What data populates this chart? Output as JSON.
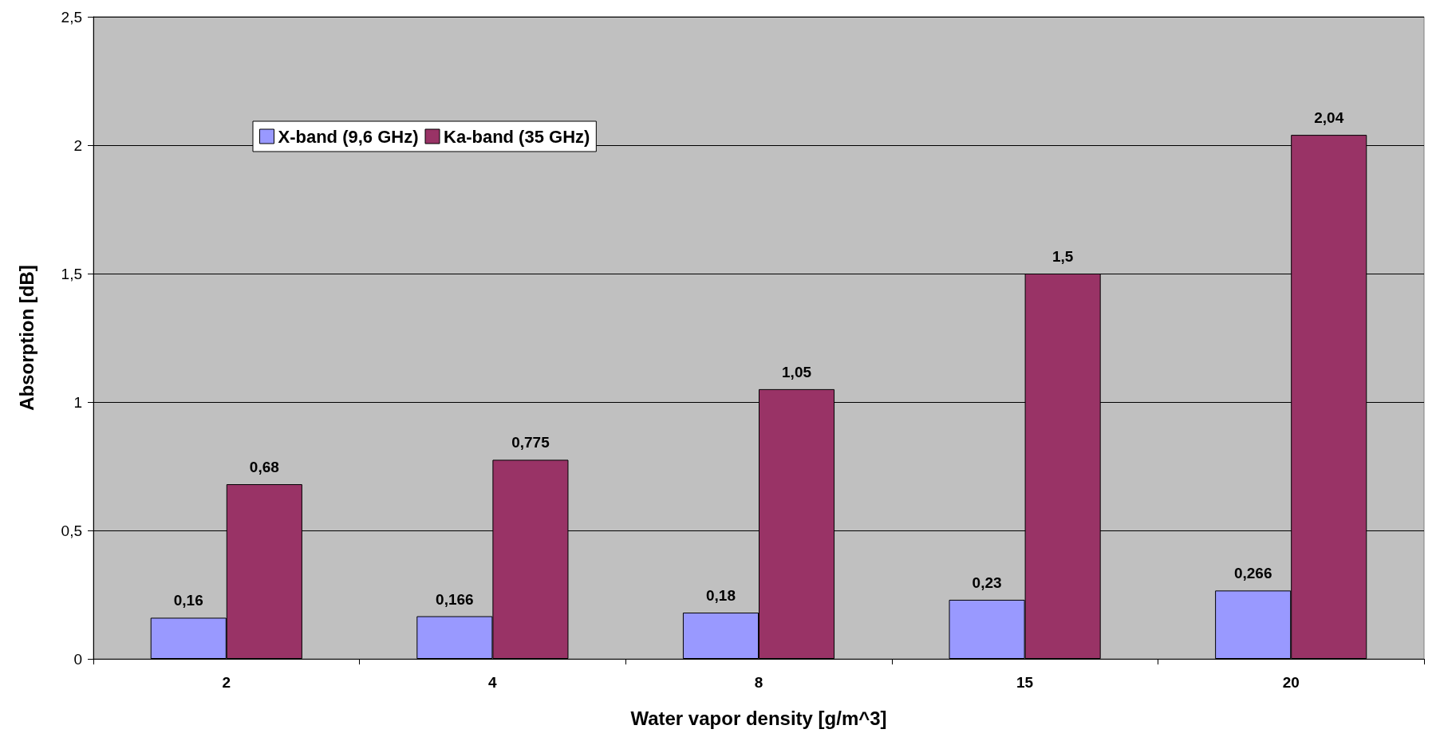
{
  "chart_data": {
    "type": "bar",
    "xlabel": "Water vapor density [g/m^3]",
    "ylabel": "Absorption [dB]",
    "categories": [
      "2",
      "4",
      "8",
      "15",
      "20"
    ],
    "series": [
      {
        "name": "X-band (9,6 GHz)",
        "color": "#9999ff",
        "values": [
          0.16,
          0.166,
          0.18,
          0.23,
          0.266
        ],
        "value_labels": [
          "0,16",
          "0,166",
          "0,18",
          "0,23",
          "0,266"
        ]
      },
      {
        "name": "Ka-band (35 GHz)",
        "color": "#993366",
        "values": [
          0.68,
          0.775,
          1.05,
          1.5,
          2.04
        ],
        "value_labels": [
          "0,68",
          "0,775",
          "1,05",
          "1,5",
          "2,04"
        ]
      }
    ],
    "ylim": [
      0,
      2.5
    ],
    "yticks": [
      0,
      {
        "value": 0.5,
        "label": "0,5"
      },
      1,
      {
        "value": 1.5,
        "label": "1,5"
      },
      2,
      {
        "value": 2.5,
        "label": "2,5"
      }
    ],
    "grid": "y",
    "legend": "top left"
  }
}
